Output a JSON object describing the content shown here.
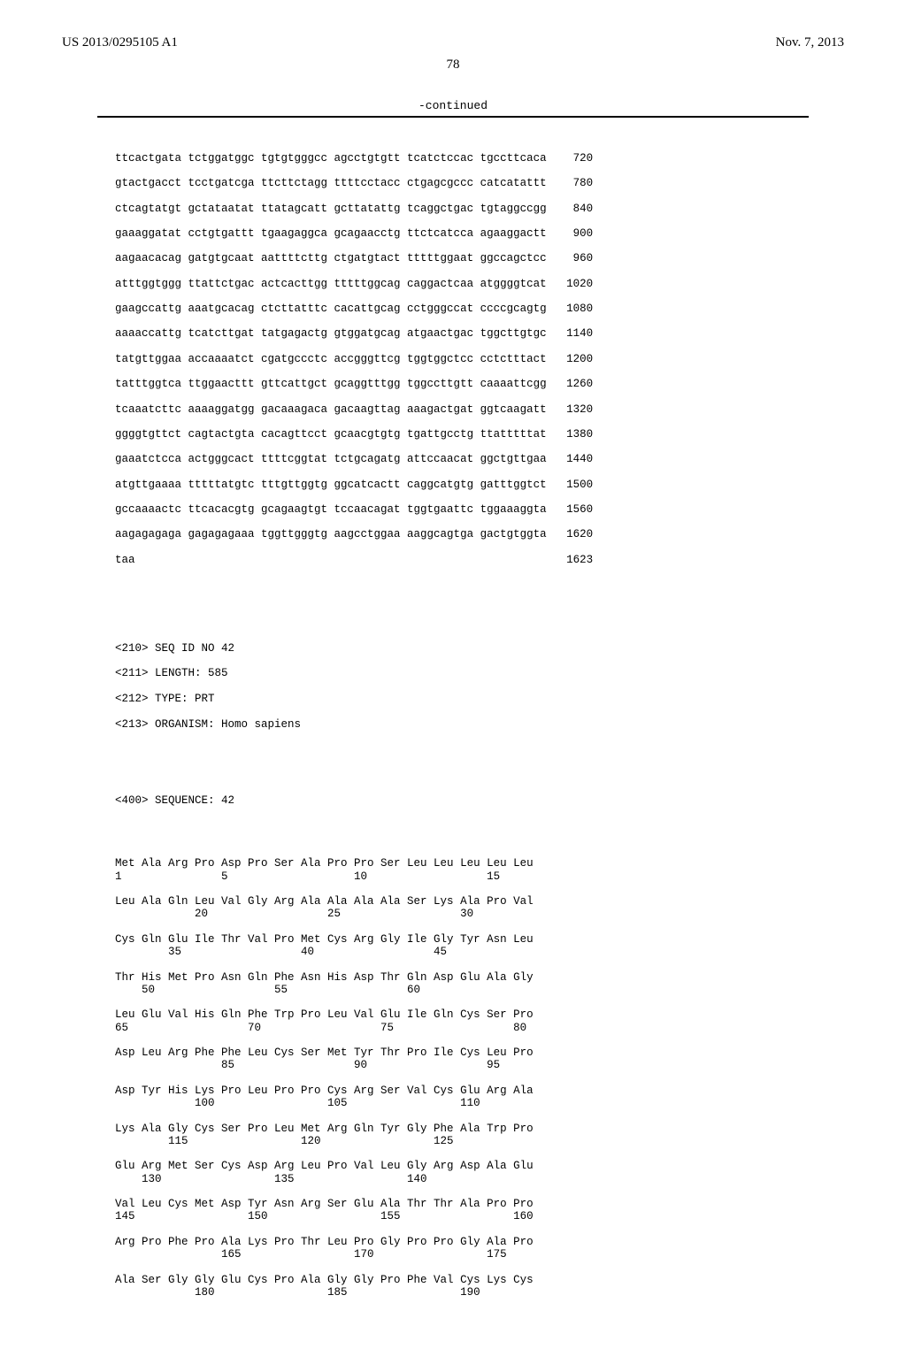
{
  "header": {
    "publication_number": "US 2013/0295105 A1",
    "publication_date": "Nov. 7, 2013",
    "page_number": "78",
    "continued_label": "-continued"
  },
  "dna_sequence": {
    "rows": [
      {
        "groups": "ttcactgata tctggatggc tgtgtgggcc agcctgtgtt tcatctccac tgccttcaca",
        "pos": "720"
      },
      {
        "groups": "gtactgacct tcctgatcga ttcttctagg ttttcctacc ctgagcgccc catcatattt",
        "pos": "780"
      },
      {
        "groups": "ctcagtatgt gctataatat ttatagcatt gcttatattg tcaggctgac tgtaggccgg",
        "pos": "840"
      },
      {
        "groups": "gaaaggatat cctgtgattt tgaagaggca gcagaacctg ttctcatcca agaaggactt",
        "pos": "900"
      },
      {
        "groups": "aagaacacag gatgtgcaat aattttcttg ctgatgtact tttttggaat ggccagctcc",
        "pos": "960"
      },
      {
        "groups": "atttggtggg ttattctgac actcacttgg tttttggcag caggactcaa atggggtcat",
        "pos": "1020"
      },
      {
        "groups": "gaagccattg aaatgcacag ctcttatttc cacattgcag cctgggccat ccccgcagtg",
        "pos": "1080"
      },
      {
        "groups": "aaaaccattg tcatcttgat tatgagactg gtggatgcag atgaactgac tggcttgtgc",
        "pos": "1140"
      },
      {
        "groups": "tatgttggaa accaaaatct cgatgccctc accgggttcg tggtggctcc cctctttact",
        "pos": "1200"
      },
      {
        "groups": "tatttggtca ttggaacttt gttcattgct gcaggtttgg tggccttgtt caaaattcgg",
        "pos": "1260"
      },
      {
        "groups": "tcaaatcttc aaaaggatgg gacaaagaca gacaagttag aaagactgat ggtcaagatt",
        "pos": "1320"
      },
      {
        "groups": "ggggtgttct cagtactgta cacagttcct gcaacgtgtg tgattgcctg ttatttttat",
        "pos": "1380"
      },
      {
        "groups": "gaaatctcca actgggcact ttttcggtat tctgcagatg attccaacat ggctgttgaa",
        "pos": "1440"
      },
      {
        "groups": "atgttgaaaa tttttatgtc tttgttggtg ggcatcactt caggcatgtg gatttggtct",
        "pos": "1500"
      },
      {
        "groups": "gccaaaactc ttcacacgtg gcagaagtgt tccaacagat tggtgaattc tggaaaggta",
        "pos": "1560"
      },
      {
        "groups": "aagagagaga gagagagaaa tggttgggtg aagcctggaa aaggcagtga gactgtggta",
        "pos": "1620"
      },
      {
        "groups": "taa",
        "pos": "1623"
      }
    ]
  },
  "metadata": {
    "seq_id": "<210> SEQ ID NO 42",
    "length": "<211> LENGTH: 585",
    "type": "<212> TYPE: PRT",
    "organism": "<213> ORGANISM: Homo sapiens",
    "sequence_label": "<400> SEQUENCE: 42"
  },
  "protein_sequence": {
    "rows": [
      {
        "aa": "Met Ala Arg Pro Asp Pro Ser Ala Pro Pro Ser Leu Leu Leu Leu Leu",
        "nums": "1               5                   10                  15"
      },
      {
        "aa": "Leu Ala Gln Leu Val Gly Arg Ala Ala Ala Ala Ser Lys Ala Pro Val",
        "nums": "            20                  25                  30"
      },
      {
        "aa": "Cys Gln Glu Ile Thr Val Pro Met Cys Arg Gly Ile Gly Tyr Asn Leu",
        "nums": "        35                  40                  45"
      },
      {
        "aa": "Thr His Met Pro Asn Gln Phe Asn His Asp Thr Gln Asp Glu Ala Gly",
        "nums": "    50                  55                  60"
      },
      {
        "aa": "Leu Glu Val His Gln Phe Trp Pro Leu Val Glu Ile Gln Cys Ser Pro",
        "nums": "65                  70                  75                  80"
      },
      {
        "aa": "Asp Leu Arg Phe Phe Leu Cys Ser Met Tyr Thr Pro Ile Cys Leu Pro",
        "nums": "                85                  90                  95"
      },
      {
        "aa": "Asp Tyr His Lys Pro Leu Pro Pro Cys Arg Ser Val Cys Glu Arg Ala",
        "nums": "            100                 105                 110"
      },
      {
        "aa": "Lys Ala Gly Cys Ser Pro Leu Met Arg Gln Tyr Gly Phe Ala Trp Pro",
        "nums": "        115                 120                 125"
      },
      {
        "aa": "Glu Arg Met Ser Cys Asp Arg Leu Pro Val Leu Gly Arg Asp Ala Glu",
        "nums": "    130                 135                 140"
      },
      {
        "aa": "Val Leu Cys Met Asp Tyr Asn Arg Ser Glu Ala Thr Thr Ala Pro Pro",
        "nums": "145                 150                 155                 160"
      },
      {
        "aa": "Arg Pro Phe Pro Ala Lys Pro Thr Leu Pro Gly Pro Pro Gly Ala Pro",
        "nums": "                165                 170                 175"
      },
      {
        "aa": "Ala Ser Gly Gly Glu Cys Pro Ala Gly Gly Pro Phe Val Cys Lys Cys",
        "nums": "            180                 185                 190"
      }
    ]
  }
}
